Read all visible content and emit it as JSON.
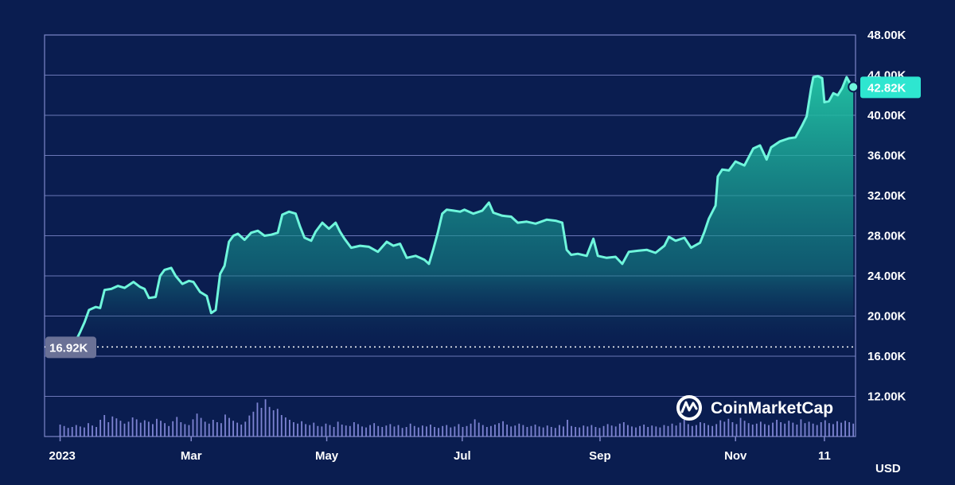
{
  "colors": {
    "background": "#0a1d50",
    "grid": "#7d86c8",
    "line": "#6ff6dc",
    "area_top": "#22c7a6",
    "volume": "#8a8fe0",
    "start_badge": "#6a7196",
    "last_badge": "#2ee6d0"
  },
  "brand": {
    "name": "CoinMarketCap",
    "icon": "coinmarketcap-logo-icon"
  },
  "chart_data": {
    "type": "area",
    "unit_label": "USD",
    "y_tick_labels": [
      "12.00K",
      "16.00K",
      "20.00K",
      "24.00K",
      "28.00K",
      "32.00K",
      "36.00K",
      "40.00K",
      "44.00K",
      "48.00K"
    ],
    "y_ticks": [
      12000,
      16000,
      20000,
      24000,
      28000,
      32000,
      36000,
      40000,
      44000,
      48000
    ],
    "ylim": [
      8000,
      48000
    ],
    "x_tick_labels": [
      "2023",
      "Mar",
      "May",
      "Jul",
      "Sep",
      "Nov",
      "11"
    ],
    "x_ticks": [
      "2023-01-01",
      "2023-03-01",
      "2023-05-01",
      "2023-07-01",
      "2023-09-01",
      "2023-11-01",
      "2023-12-11"
    ],
    "xlim": [
      "2022-12-25",
      "2023-12-25"
    ],
    "grid": true,
    "start_value": 16920,
    "start_label": "16.92K",
    "last_value": 42820,
    "last_label": "42.82K",
    "series": [
      {
        "points": [
          [
            "2023-01-01",
            16920
          ],
          [
            "2023-01-05",
            17000
          ],
          [
            "2023-01-08",
            17500
          ],
          [
            "2023-01-10",
            18400
          ],
          [
            "2023-01-12",
            19400
          ],
          [
            "2023-01-14",
            20600
          ],
          [
            "2023-01-17",
            20900
          ],
          [
            "2023-01-19",
            20800
          ],
          [
            "2023-01-21",
            22600
          ],
          [
            "2023-01-24",
            22700
          ],
          [
            "2023-01-27",
            23000
          ],
          [
            "2023-01-30",
            22800
          ],
          [
            "2023-02-01",
            23100
          ],
          [
            "2023-02-03",
            23400
          ],
          [
            "2023-02-06",
            22900
          ],
          [
            "2023-02-08",
            22700
          ],
          [
            "2023-02-10",
            21800
          ],
          [
            "2023-02-13",
            21900
          ],
          [
            "2023-02-15",
            24000
          ],
          [
            "2023-02-17",
            24600
          ],
          [
            "2023-02-20",
            24800
          ],
          [
            "2023-02-22",
            24000
          ],
          [
            "2023-02-25",
            23200
          ],
          [
            "2023-02-28",
            23500
          ],
          [
            "2023-03-02",
            23400
          ],
          [
            "2023-03-05",
            22400
          ],
          [
            "2023-03-08",
            22000
          ],
          [
            "2023-03-10",
            20300
          ],
          [
            "2023-03-12",
            20600
          ],
          [
            "2023-03-14",
            24200
          ],
          [
            "2023-03-16",
            25000
          ],
          [
            "2023-03-18",
            27400
          ],
          [
            "2023-03-20",
            28000
          ],
          [
            "2023-03-22",
            28200
          ],
          [
            "2023-03-25",
            27600
          ],
          [
            "2023-03-28",
            28300
          ],
          [
            "2023-03-31",
            28500
          ],
          [
            "2023-04-03",
            28000
          ],
          [
            "2023-04-06",
            28100
          ],
          [
            "2023-04-09",
            28300
          ],
          [
            "2023-04-11",
            30100
          ],
          [
            "2023-04-14",
            30400
          ],
          [
            "2023-04-17",
            30200
          ],
          [
            "2023-04-19",
            28900
          ],
          [
            "2023-04-21",
            27800
          ],
          [
            "2023-04-24",
            27500
          ],
          [
            "2023-04-26",
            28400
          ],
          [
            "2023-04-29",
            29300
          ],
          [
            "2023-05-02",
            28700
          ],
          [
            "2023-05-05",
            29300
          ],
          [
            "2023-05-07",
            28400
          ],
          [
            "2023-05-09",
            27700
          ],
          [
            "2023-05-12",
            26800
          ],
          [
            "2023-05-16",
            27000
          ],
          [
            "2023-05-20",
            26900
          ],
          [
            "2023-05-24",
            26400
          ],
          [
            "2023-05-28",
            27400
          ],
          [
            "2023-05-31",
            27000
          ],
          [
            "2023-06-03",
            27200
          ],
          [
            "2023-06-06",
            25800
          ],
          [
            "2023-06-10",
            26000
          ],
          [
            "2023-06-14",
            25600
          ],
          [
            "2023-06-16",
            25200
          ],
          [
            "2023-06-18",
            26700
          ],
          [
            "2023-06-20",
            28300
          ],
          [
            "2023-06-22",
            30200
          ],
          [
            "2023-06-24",
            30600
          ],
          [
            "2023-06-27",
            30500
          ],
          [
            "2023-06-30",
            30400
          ],
          [
            "2023-07-02",
            30600
          ],
          [
            "2023-07-06",
            30200
          ],
          [
            "2023-07-10",
            30500
          ],
          [
            "2023-07-13",
            31300
          ],
          [
            "2023-07-15",
            30300
          ],
          [
            "2023-07-19",
            30000
          ],
          [
            "2023-07-23",
            29900
          ],
          [
            "2023-07-26",
            29300
          ],
          [
            "2023-07-30",
            29400
          ],
          [
            "2023-08-03",
            29200
          ],
          [
            "2023-08-08",
            29600
          ],
          [
            "2023-08-12",
            29500
          ],
          [
            "2023-08-15",
            29300
          ],
          [
            "2023-08-17",
            26600
          ],
          [
            "2023-08-19",
            26100
          ],
          [
            "2023-08-22",
            26200
          ],
          [
            "2023-08-26",
            26000
          ],
          [
            "2023-08-29",
            27700
          ],
          [
            "2023-08-31",
            26000
          ],
          [
            "2023-09-04",
            25800
          ],
          [
            "2023-09-08",
            25900
          ],
          [
            "2023-09-11",
            25200
          ],
          [
            "2023-09-14",
            26400
          ],
          [
            "2023-09-18",
            26500
          ],
          [
            "2023-09-22",
            26600
          ],
          [
            "2023-09-26",
            26300
          ],
          [
            "2023-09-30",
            27000
          ],
          [
            "2023-10-02",
            27900
          ],
          [
            "2023-10-05",
            27500
          ],
          [
            "2023-10-09",
            27800
          ],
          [
            "2023-10-12",
            26800
          ],
          [
            "2023-10-16",
            27300
          ],
          [
            "2023-10-18",
            28400
          ],
          [
            "2023-10-20",
            29700
          ],
          [
            "2023-10-23",
            31000
          ],
          [
            "2023-10-24",
            33900
          ],
          [
            "2023-10-26",
            34600
          ],
          [
            "2023-10-29",
            34500
          ],
          [
            "2023-11-01",
            35400
          ],
          [
            "2023-11-05",
            35000
          ],
          [
            "2023-11-09",
            36700
          ],
          [
            "2023-11-12",
            37000
          ],
          [
            "2023-11-15",
            35600
          ],
          [
            "2023-11-17",
            36800
          ],
          [
            "2023-11-21",
            37400
          ],
          [
            "2023-11-25",
            37700
          ],
          [
            "2023-11-28",
            37800
          ],
          [
            "2023-12-01",
            39000
          ],
          [
            "2023-12-03",
            39900
          ],
          [
            "2023-12-05",
            42700
          ],
          [
            "2023-12-06",
            43800
          ],
          [
            "2023-12-08",
            43900
          ],
          [
            "2023-12-10",
            43700
          ],
          [
            "2023-12-11",
            41300
          ],
          [
            "2023-12-13",
            41400
          ],
          [
            "2023-12-15",
            42200
          ],
          [
            "2023-12-17",
            42000
          ],
          [
            "2023-12-19",
            42700
          ],
          [
            "2023-12-21",
            43800
          ],
          [
            "2023-12-23",
            43000
          ],
          [
            "2023-12-24",
            42820
          ]
        ]
      }
    ],
    "volume_relative": [
      0.25,
      0.22,
      0.18,
      0.2,
      0.24,
      0.21,
      0.19,
      0.28,
      0.23,
      0.2,
      0.35,
      0.45,
      0.3,
      0.42,
      0.38,
      0.33,
      0.27,
      0.31,
      0.4,
      0.36,
      0.29,
      0.34,
      0.31,
      0.26,
      0.37,
      0.33,
      0.28,
      0.22,
      0.32,
      0.41,
      0.3,
      0.26,
      0.24,
      0.36,
      0.48,
      0.39,
      0.31,
      0.27,
      0.35,
      0.3,
      0.28,
      0.46,
      0.39,
      0.33,
      0.29,
      0.25,
      0.31,
      0.44,
      0.52,
      0.71,
      0.6,
      0.78,
      0.62,
      0.55,
      0.58,
      0.45,
      0.4,
      0.35,
      0.3,
      0.27,
      0.32,
      0.26,
      0.24,
      0.29,
      0.22,
      0.21,
      0.27,
      0.24,
      0.2,
      0.31,
      0.25,
      0.23,
      0.22,
      0.3,
      0.26,
      0.21,
      0.19,
      0.24,
      0.28,
      0.22,
      0.2,
      0.23,
      0.26,
      0.21,
      0.24,
      0.18,
      0.2,
      0.27,
      0.22,
      0.19,
      0.23,
      0.21,
      0.25,
      0.2,
      0.18,
      0.22,
      0.24,
      0.19,
      0.21,
      0.26,
      0.2,
      0.22,
      0.27,
      0.36,
      0.29,
      0.24,
      0.2,
      0.22,
      0.25,
      0.28,
      0.32,
      0.25,
      0.21,
      0.23,
      0.27,
      0.24,
      0.2,
      0.22,
      0.25,
      0.21,
      0.19,
      0.23,
      0.2,
      0.18,
      0.24,
      0.21,
      0.35,
      0.22,
      0.2,
      0.19,
      0.23,
      0.21,
      0.24,
      0.2,
      0.18,
      0.22,
      0.26,
      0.23,
      0.21,
      0.27,
      0.3,
      0.24,
      0.21,
      0.19,
      0.22,
      0.25,
      0.2,
      0.23,
      0.21,
      0.19,
      0.24,
      0.22,
      0.27,
      0.23,
      0.29,
      0.35,
      0.26,
      0.22,
      0.24,
      0.3,
      0.28,
      0.24,
      0.22,
      0.26,
      0.34,
      0.31,
      0.37,
      0.3,
      0.26,
      0.39,
      0.33,
      0.28,
      0.25,
      0.27,
      0.31,
      0.26,
      0.24,
      0.29,
      0.35,
      0.3,
      0.27,
      0.33,
      0.29,
      0.25,
      0.36,
      0.28,
      0.31,
      0.27,
      0.24,
      0.3,
      0.34,
      0.28,
      0.26,
      0.32,
      0.29,
      0.33,
      0.3,
      0.27
    ]
  }
}
